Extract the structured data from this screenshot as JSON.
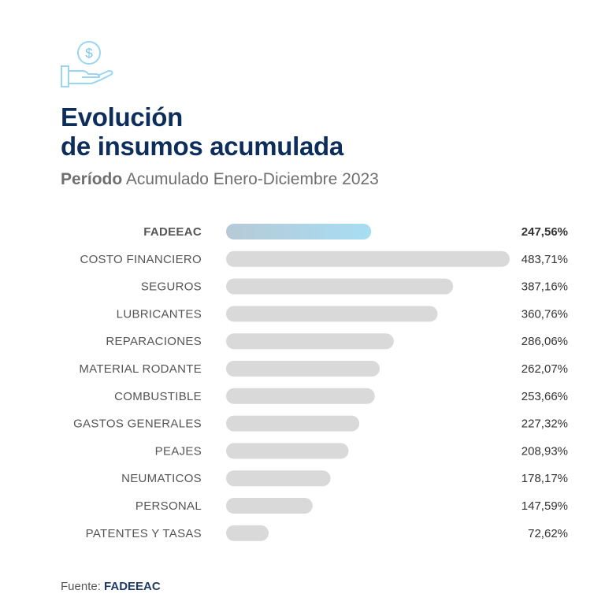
{
  "header": {
    "icon": "money-hand-icon",
    "title_line1": "Evolución",
    "title_line2": "de insumos acumulada",
    "subtitle_bold": "Período",
    "subtitle_rest": " Acumulado Enero-Diciembre 2023"
  },
  "footer": {
    "source_label": "Fuente: ",
    "source_name": "FADEEAC"
  },
  "colors": {
    "title": "#0d2e5a",
    "bar": "#d9d9d9",
    "highlight_start": "#b7c9d6",
    "highlight_end": "#a6def3"
  },
  "chart_data": {
    "type": "bar",
    "orientation": "horizontal",
    "categories": [
      "FADEEAC",
      "COSTO FINANCIERO",
      "SEGUROS",
      "LUBRICANTES",
      "REPARACIONES",
      "MATERIAL RODANTE",
      "COMBUSTIBLE",
      "GASTOS GENERALES",
      "PEAJES",
      "NEUMATICOS",
      "PERSONAL",
      "PATENTES Y TASAS"
    ],
    "values": [
      247.56,
      483.71,
      387.16,
      360.76,
      286.06,
      262.07,
      253.66,
      227.32,
      208.93,
      178.17,
      147.59,
      72.62
    ],
    "value_labels": [
      "247,56%",
      "483,71%",
      "387,16%",
      "360,76%",
      "286,06%",
      "262,07%",
      "253,66%",
      "227,32%",
      "208,93%",
      "178,17%",
      "147,59%",
      "72,62%"
    ],
    "highlight": "FADEEAC",
    "xlim": [
      0,
      483.71
    ],
    "grid": false
  }
}
